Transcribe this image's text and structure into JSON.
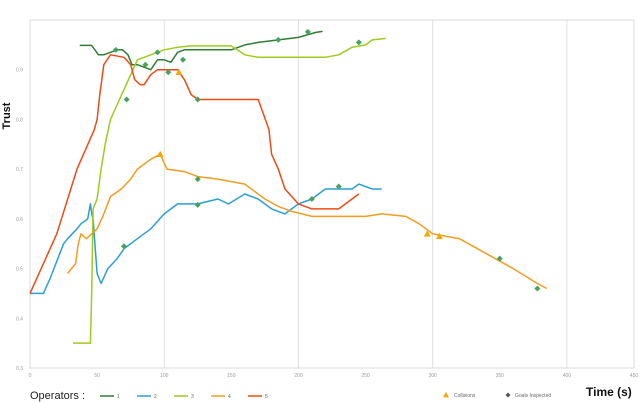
{
  "chart_data": {
    "type": "line",
    "title": "",
    "ylabel": "Trust",
    "xlabel": "Time (s)",
    "xlim": [
      0,
      450
    ],
    "ylim": [
      0.3,
      1.0
    ],
    "x_ticks": [
      0,
      50,
      100,
      150,
      200,
      250,
      300,
      350,
      400,
      450
    ],
    "y_ticks": [
      0.3,
      0.4,
      0.5,
      0.6,
      0.7,
      0.8,
      0.9
    ],
    "grid": true,
    "legend": {
      "placement": "bottom",
      "operators_label": "Operators :",
      "operators": [
        {
          "label": "1",
          "color": "#2e7d32"
        },
        {
          "label": "2",
          "color": "#2a9fd6"
        },
        {
          "label": "3",
          "color": "#9ccc1c"
        },
        {
          "label": "4",
          "color": "#f39c1e"
        },
        {
          "label": "5",
          "color": "#ef4a16"
        }
      ],
      "events": [
        {
          "label": "Collisions",
          "color": "#f5b800",
          "marker": "triangle"
        },
        {
          "label": "Goals Inspected",
          "color": "#555555",
          "marker": "diamond"
        }
      ]
    },
    "series": [
      {
        "name": "1",
        "color": "#2e7d32",
        "x": [
          37,
          46,
          51,
          55,
          60,
          65,
          69,
          73,
          76,
          80,
          85,
          90,
          95,
          100,
          105,
          110,
          115,
          120,
          130,
          150,
          160,
          170,
          185,
          200,
          213,
          218
        ],
        "y": [
          0.949,
          0.949,
          0.93,
          0.93,
          0.935,
          0.94,
          0.94,
          0.93,
          0.91,
          0.91,
          0.905,
          0.9,
          0.92,
          0.92,
          0.915,
          0.935,
          0.94,
          0.94,
          0.94,
          0.94,
          0.95,
          0.955,
          0.96,
          0.965,
          0.975,
          0.977
        ],
        "goals": [
          [
            64,
            0.94
          ],
          [
            114,
            0.92
          ],
          [
            185,
            0.96
          ],
          [
            207,
            0.976
          ]
        ]
      },
      {
        "name": "2",
        "color": "#2a9fd6",
        "x": [
          0,
          10,
          15,
          25,
          28,
          35,
          38,
          43,
          45,
          46,
          47,
          50,
          53,
          58,
          65,
          70,
          80,
          90,
          100,
          105,
          110,
          125,
          140,
          148,
          160,
          170,
          180,
          190,
          200,
          210,
          220,
          230,
          240,
          245,
          255,
          262
        ],
        "y": [
          0.45,
          0.45,
          0.48,
          0.55,
          0.56,
          0.58,
          0.59,
          0.6,
          0.63,
          0.61,
          0.6,
          0.49,
          0.47,
          0.5,
          0.52,
          0.54,
          0.56,
          0.58,
          0.61,
          0.62,
          0.63,
          0.63,
          0.64,
          0.63,
          0.65,
          0.64,
          0.62,
          0.61,
          0.63,
          0.64,
          0.66,
          0.66,
          0.66,
          0.67,
          0.66,
          0.66
        ],
        "goals": [
          [
            70,
            0.545
          ],
          [
            125,
            0.628
          ],
          [
            210,
            0.64
          ],
          [
            230,
            0.665
          ]
        ]
      },
      {
        "name": "3",
        "color": "#9ccc1c",
        "x": [
          32,
          44,
          45,
          46,
          47,
          50,
          53,
          56,
          60,
          65,
          70,
          75,
          80,
          85,
          90,
          95,
          100,
          110,
          120,
          130,
          140,
          150,
          160,
          170,
          180,
          190,
          200,
          210,
          220,
          230,
          240,
          250,
          255,
          262,
          265
        ],
        "y": [
          0.35,
          0.35,
          0.35,
          0.45,
          0.62,
          0.64,
          0.7,
          0.75,
          0.8,
          0.83,
          0.86,
          0.89,
          0.92,
          0.925,
          0.93,
          0.935,
          0.94,
          0.945,
          0.948,
          0.948,
          0.948,
          0.948,
          0.93,
          0.925,
          0.925,
          0.925,
          0.925,
          0.925,
          0.925,
          0.93,
          0.945,
          0.95,
          0.96,
          0.962,
          0.963
        ],
        "goals": [
          [
            72,
            0.84
          ],
          [
            86,
            0.91
          ],
          [
            95,
            0.935
          ],
          [
            245,
            0.955
          ]
        ]
      },
      {
        "name": "4",
        "color": "#f39c1e",
        "x": [
          28,
          34,
          36,
          38,
          42,
          46,
          50,
          55,
          60,
          68,
          75,
          80,
          90,
          97,
          102,
          115,
          125,
          140,
          160,
          175,
          185,
          195,
          210,
          230,
          250,
          262,
          280,
          290,
          300,
          320,
          340,
          360,
          378,
          385
        ],
        "y": [
          0.49,
          0.51,
          0.55,
          0.57,
          0.56,
          0.57,
          0.58,
          0.61,
          0.645,
          0.66,
          0.68,
          0.7,
          0.72,
          0.73,
          0.7,
          0.695,
          0.685,
          0.68,
          0.67,
          0.64,
          0.625,
          0.615,
          0.605,
          0.605,
          0.605,
          0.61,
          0.605,
          0.59,
          0.57,
          0.56,
          0.53,
          0.5,
          0.47,
          0.46
        ],
        "goals": [
          [
            125,
            0.68
          ],
          [
            350,
            0.52
          ],
          [
            378,
            0.46
          ]
        ],
        "collisions": [
          [
            97,
            0.73
          ],
          [
            296,
            0.57
          ],
          [
            305,
            0.565
          ]
        ]
      },
      {
        "name": "5",
        "color": "#ef4a16",
        "x": [
          0,
          20,
          35,
          48,
          50,
          52,
          55,
          60,
          70,
          75,
          78,
          82,
          85,
          90,
          95,
          100,
          110,
          115,
          120,
          125,
          140,
          170,
          178,
          180,
          185,
          190,
          200,
          210,
          215,
          220,
          230,
          245
        ],
        "y": [
          0.45,
          0.57,
          0.7,
          0.78,
          0.8,
          0.85,
          0.91,
          0.93,
          0.925,
          0.91,
          0.88,
          0.87,
          0.87,
          0.89,
          0.9,
          0.9,
          0.9,
          0.88,
          0.85,
          0.84,
          0.84,
          0.84,
          0.78,
          0.73,
          0.7,
          0.66,
          0.63,
          0.62,
          0.62,
          0.62,
          0.62,
          0.65
        ],
        "goals": [
          [
            103,
            0.895
          ],
          [
            125,
            0.84
          ]
        ],
        "collisions": [
          [
            111,
            0.895
          ]
        ]
      }
    ]
  },
  "colors": {
    "goal_marker": "#46a35e",
    "collision_marker": "#f5a800",
    "grid": "#d9d9d9",
    "axis": "#cfcfcf"
  }
}
